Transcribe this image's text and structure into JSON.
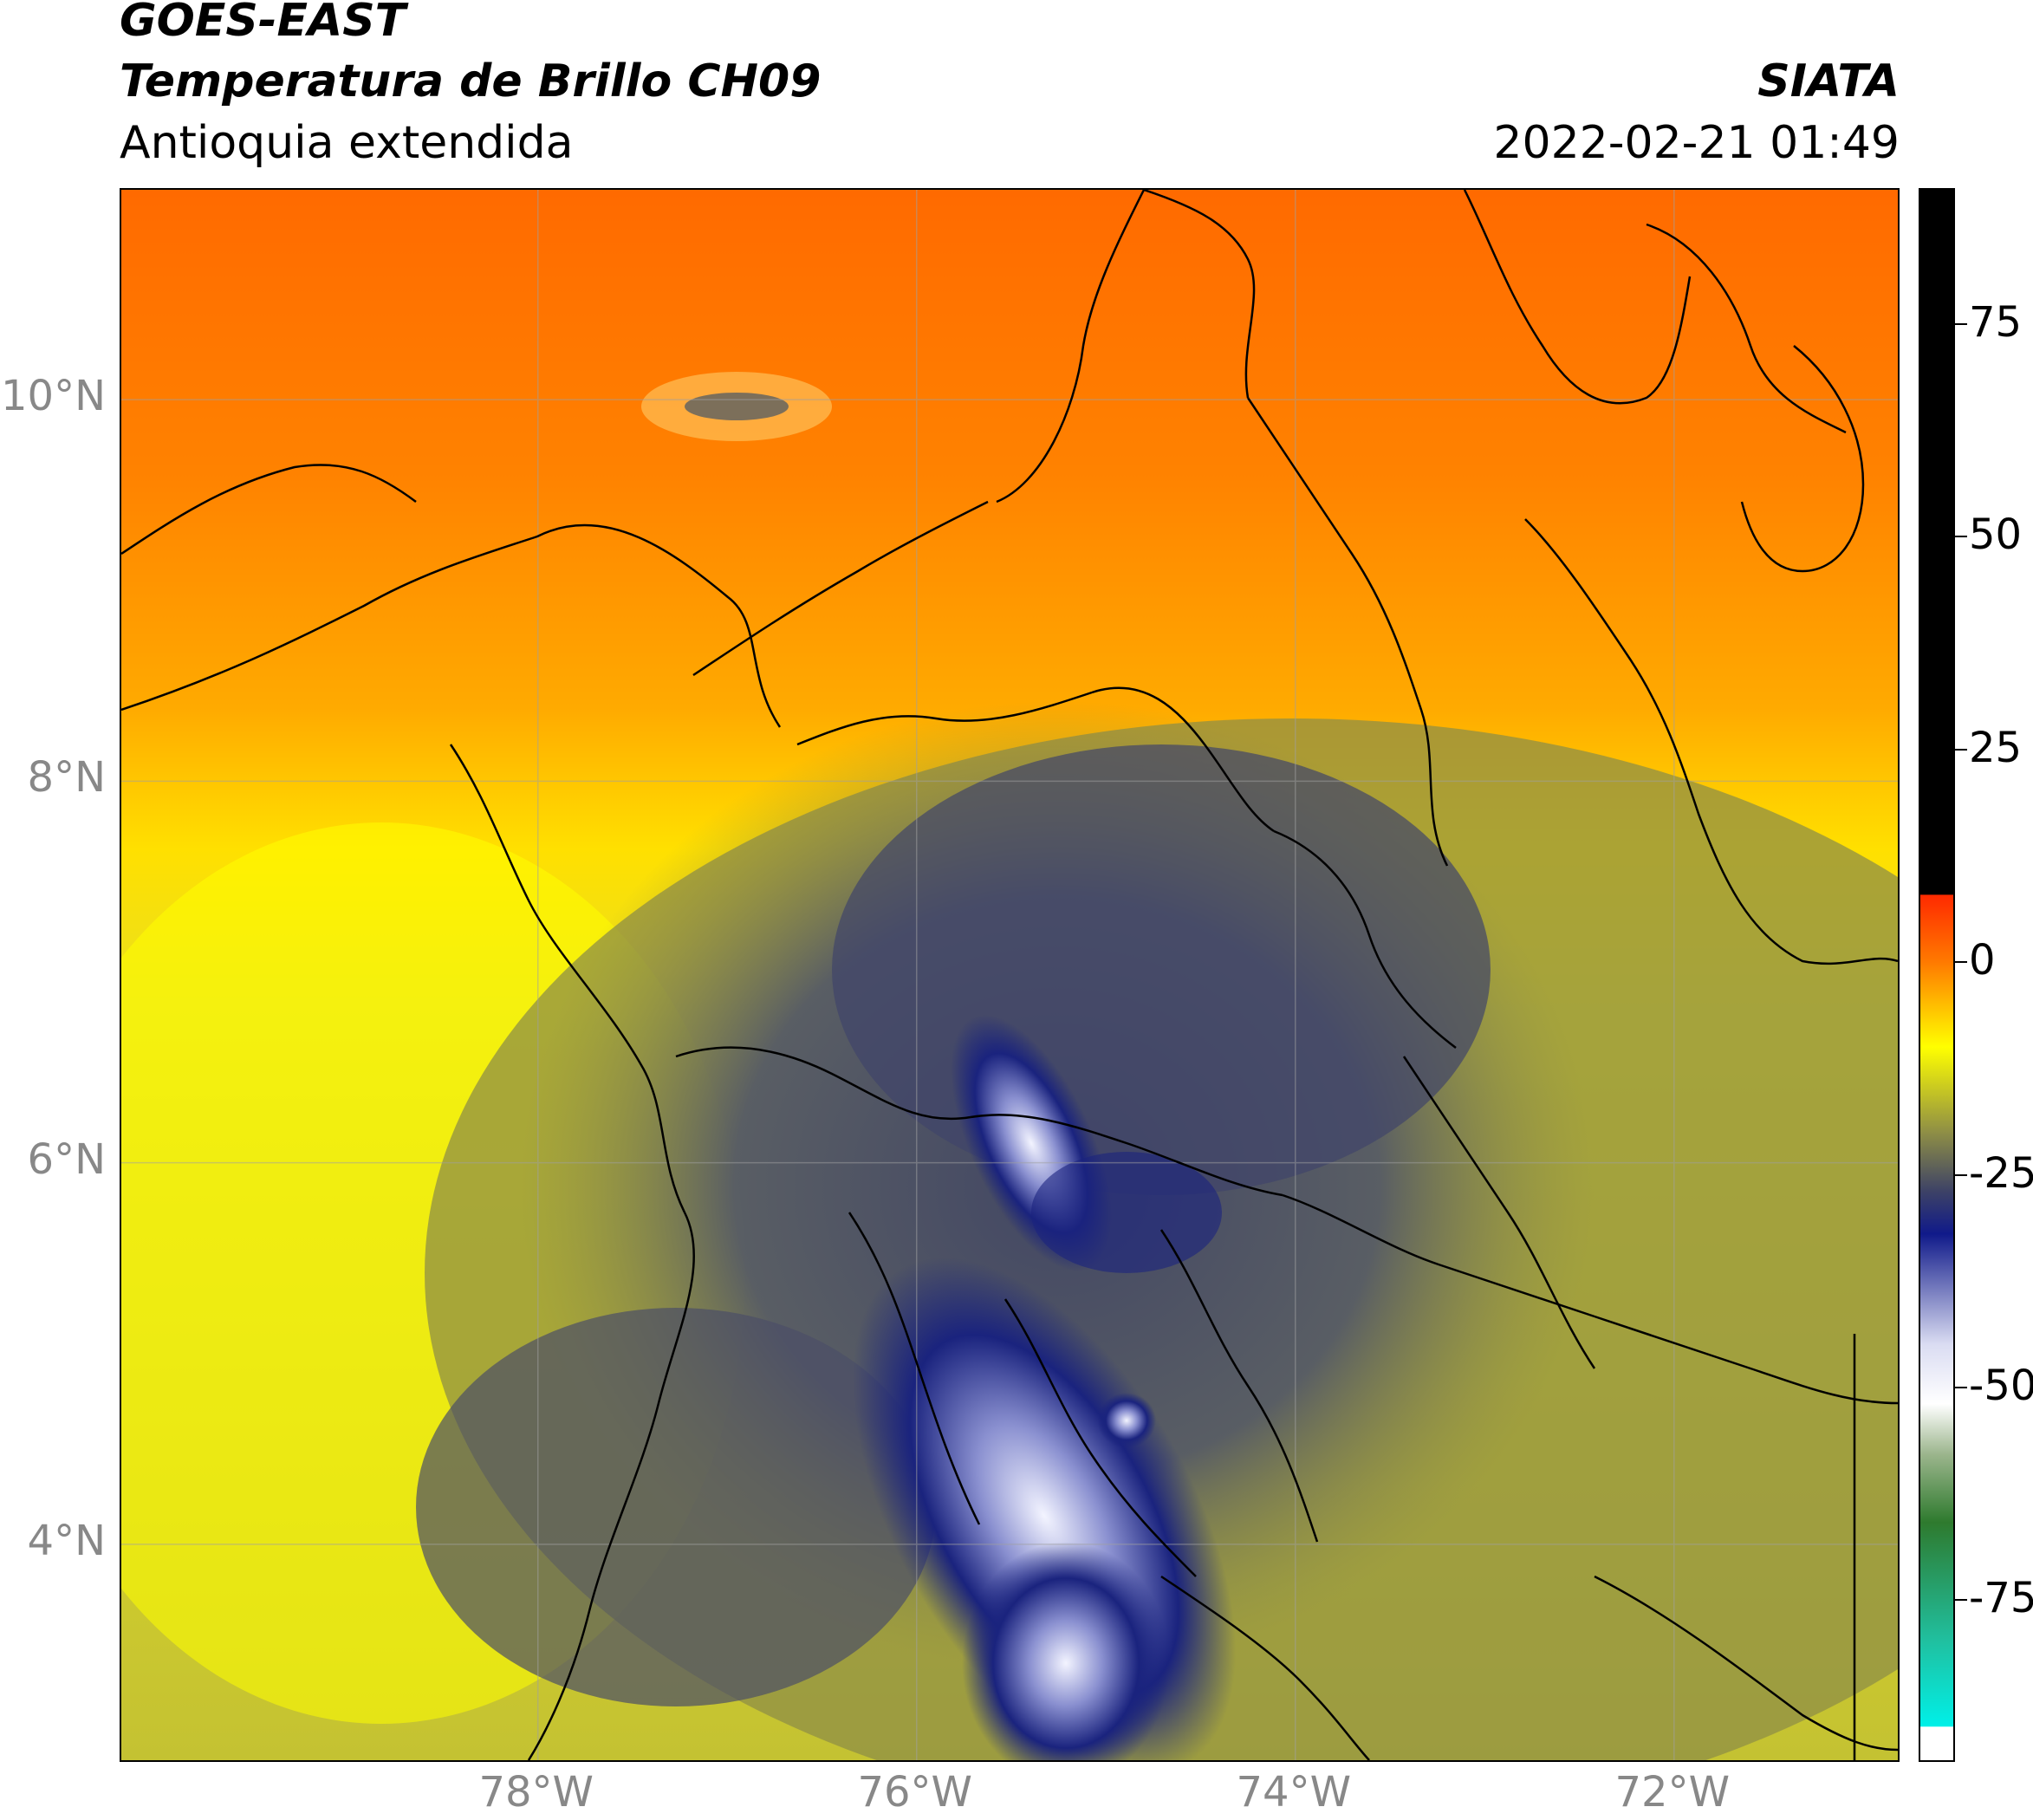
{
  "header": {
    "satellite": "GOES-EAST",
    "product": "Temperatura de Brillo CH09",
    "region": "Antioquia extendida",
    "institution": "SIATA",
    "datetime": "2022-02-21 01:49"
  },
  "map": {
    "lat_ticks": [
      {
        "label": "10°N",
        "value": 10
      },
      {
        "label": "8°N",
        "value": 8
      },
      {
        "label": "6°N",
        "value": 6
      },
      {
        "label": "4°N",
        "value": 4
      }
    ],
    "lon_ticks": [
      {
        "label": "78°W",
        "value": -78
      },
      {
        "label": "76°W",
        "value": -76
      },
      {
        "label": "74°W",
        "value": -74
      },
      {
        "label": "72°W",
        "value": -72
      }
    ],
    "extent": {
      "lon_min": -80.2,
      "lon_max": -70.8,
      "lat_min": 2.85,
      "lat_max": 11.1
    },
    "colors": {
      "warm_orange": "#ff7a00",
      "orange": "#ff9600",
      "yellow": "#ffff00",
      "olive": "#9d9d3a",
      "slate": "#4a4d66",
      "navy": "#1a237e",
      "white_cloud": "#f0f2ff",
      "border_line": "#000000"
    }
  },
  "colorbar": {
    "ticks": [
      {
        "label": "75",
        "value": 75
      },
      {
        "label": "50",
        "value": 50
      },
      {
        "label": "25",
        "value": 25
      },
      {
        "label": "0",
        "value": 0
      },
      {
        "label": "-25",
        "value": -25
      },
      {
        "label": "-50",
        "value": -50
      },
      {
        "label": "-75",
        "value": -75
      }
    ],
    "range": [
      -94,
      91
    ]
  }
}
